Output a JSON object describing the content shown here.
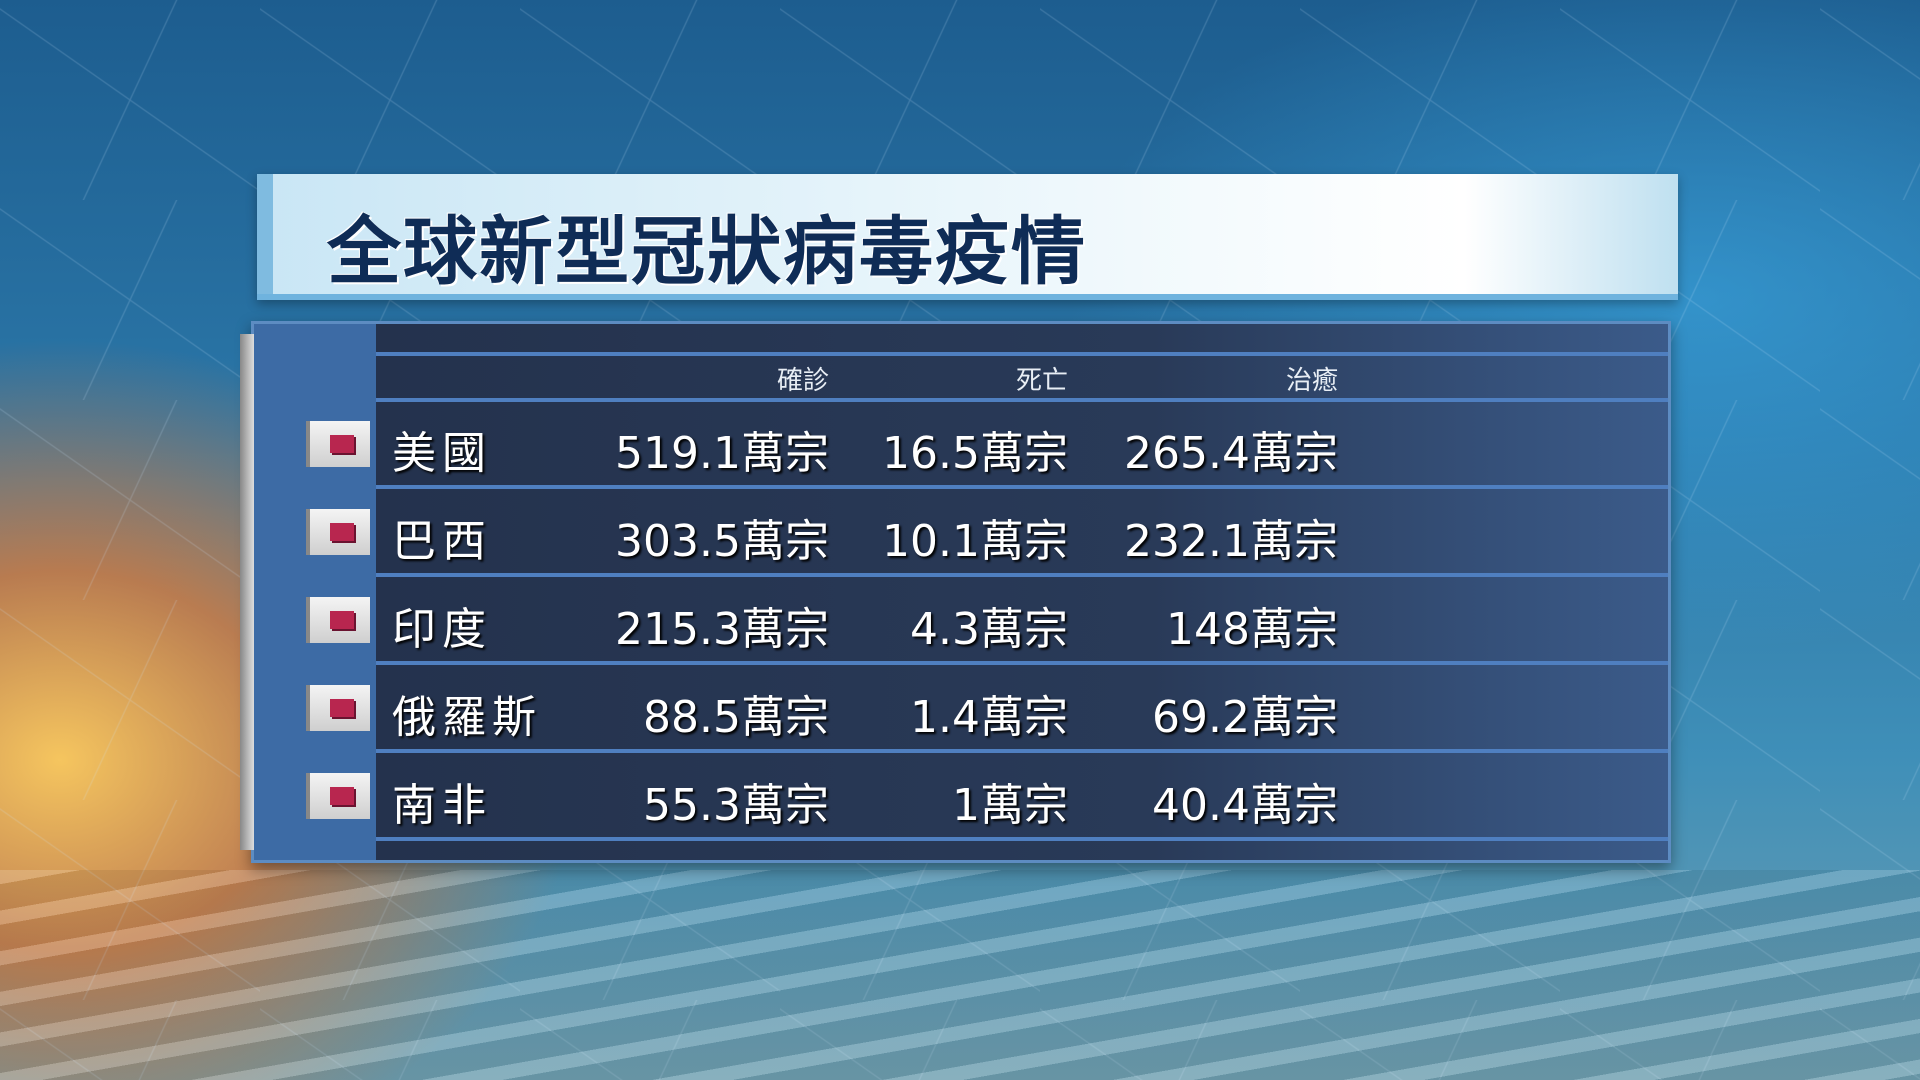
{
  "title": "全球新型冠狀病毒疫情",
  "table": {
    "headers": [
      "確診",
      "死亡",
      "治癒"
    ],
    "rows": [
      {
        "country": "美國",
        "confirmed": "519.1萬宗",
        "deaths": "16.5萬宗",
        "recovered": "265.4萬宗"
      },
      {
        "country": "巴西",
        "confirmed": "303.5萬宗",
        "deaths": "10.1萬宗",
        "recovered": "232.1萬宗"
      },
      {
        "country": "印度",
        "confirmed": "215.3萬宗",
        "deaths": "4.3萬宗",
        "recovered": "148萬宗"
      },
      {
        "country": "俄羅斯",
        "confirmed": "88.5萬宗",
        "deaths": "1.4萬宗",
        "recovered": "69.2萬宗"
      },
      {
        "country": "南非",
        "confirmed": "55.3萬宗",
        "deaths": "1萬宗",
        "recovered": "40.4萬宗"
      }
    ]
  },
  "colors": {
    "title_text": "#0f2c56",
    "panel": "#24324d",
    "flag_marker": "#b8264f"
  }
}
